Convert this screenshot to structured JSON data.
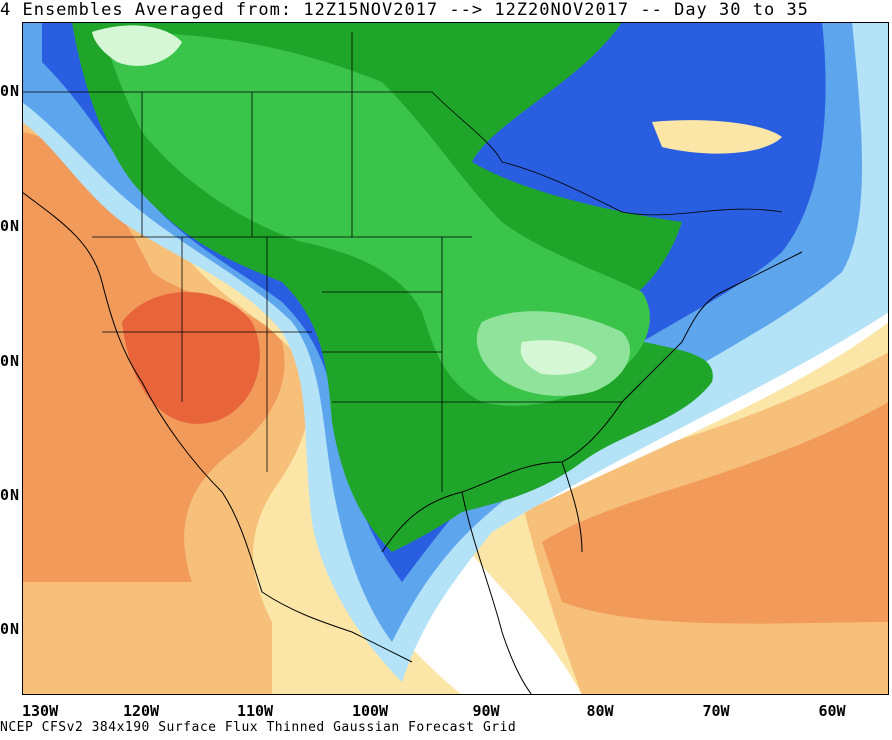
{
  "title": "4 Ensembles Averaged from: 12Z15NOV2017 --> 12Z20NOV2017 -- Day 30 to 35",
  "lat_labels": [
    "0N",
    "0N",
    "0N",
    "0N",
    "0N"
  ],
  "lon_labels": [
    "130W",
    "120W",
    "110W",
    "100W",
    "90W",
    "80W",
    "70W",
    "60W"
  ],
  "footer": "NCEP CFSv2 384x190 Surface Flux Thinned Gaussian Forecast Grid",
  "colors": {
    "dark_green": "#1fa62a",
    "green": "#3bc44a",
    "light_green": "#8fe39a",
    "pale_green": "#d6f7d6",
    "blue": "#2a5ee0",
    "light_blue": "#5da6ee",
    "pale_blue": "#b4e2f7",
    "white": "#ffffff",
    "pale_yellow": "#fbe6a8",
    "light_orange": "#f7c07a",
    "orange": "#f19a5a",
    "dark_orange": "#e8643b"
  }
}
